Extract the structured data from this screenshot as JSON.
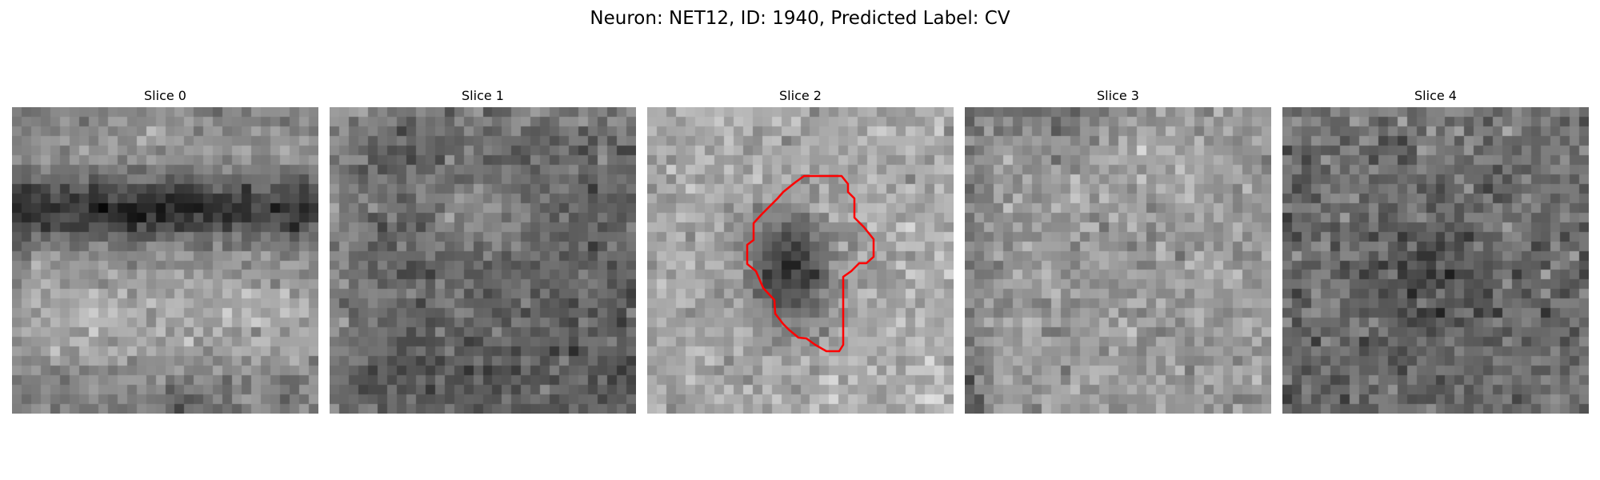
{
  "figure": {
    "title": "Neuron: NET12, ID: 1940, Predicted Label: CV",
    "grid_size": 32,
    "colormap": "gray"
  },
  "panels": [
    {
      "title": "Slice 0",
      "pattern": "dark band across upper-middle, bright lower half",
      "has_roi": false
    },
    {
      "title": "Slice 1",
      "pattern": "brighter upper-center patch on darker mottled background",
      "has_roi": false
    },
    {
      "title": "Slice 2",
      "pattern": "dark central blob on light noisy background",
      "has_roi": true,
      "roi_outline_color": "#ff0000"
    },
    {
      "title": "Slice 3",
      "pattern": "light noisy field with darker top and left edges",
      "has_roi": false
    },
    {
      "title": "Slice 4",
      "pattern": "dark mottled noise with darker center",
      "has_roi": false
    }
  ]
}
